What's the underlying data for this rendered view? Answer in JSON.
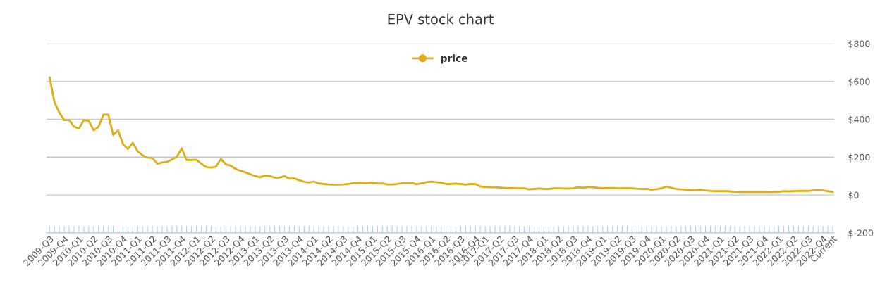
{
  "chart_data": {
    "type": "line",
    "title": "EPV stock chart",
    "categories": [
      "2009-Q3",
      null,
      null,
      "2009-Q4",
      null,
      null,
      "2010-Q1",
      null,
      null,
      "2010-Q2",
      null,
      null,
      "2010-Q3",
      null,
      null,
      "2010-Q4",
      null,
      null,
      "2011-Q1",
      null,
      null,
      "2011-Q2",
      null,
      null,
      "2011-Q3",
      null,
      null,
      "2011-Q4",
      null,
      null,
      "2012-Q1",
      null,
      null,
      "2012-Q2",
      null,
      null,
      "2012-Q3",
      null,
      null,
      "2012-Q4",
      null,
      null,
      "2013-Q1",
      null,
      null,
      "2013-Q2",
      null,
      null,
      "2013-Q3",
      null,
      null,
      "2013-Q4",
      null,
      null,
      "2014-Q1",
      null,
      null,
      "2014-Q2",
      null,
      null,
      "2014-Q3",
      null,
      null,
      "2014-Q4",
      null,
      null,
      "2015-Q1",
      null,
      null,
      "2015-Q2",
      null,
      null,
      "2015-Q3",
      null,
      null,
      "2015-Q4",
      null,
      null,
      "2016-Q1",
      null,
      null,
      "2016-Q2",
      null,
      null,
      "2016-Q3",
      null,
      null,
      "2016-Q4",
      null,
      "2017-Q1",
      null,
      null,
      "2017-Q2",
      null,
      null,
      "2017-Q3",
      null,
      null,
      "2017-Q4",
      null,
      null,
      "2018-Q1",
      null,
      null,
      "2018-Q2",
      null,
      null,
      "2018-Q3",
      null,
      null,
      "2018-Q4",
      null,
      null,
      "2019-Q1",
      null,
      null,
      "2019-Q2",
      null,
      null,
      "2019-Q3",
      null,
      null,
      "2019-Q4",
      null,
      null,
      "2020-Q1",
      null,
      null,
      "2020-Q2",
      null,
      null,
      "2020-Q3",
      null,
      null,
      "2020-Q4",
      null,
      null,
      "2021-Q1",
      null,
      null,
      "2021-Q2",
      null,
      null,
      "2021-Q3",
      null,
      null,
      "2021-Q4",
      null,
      null,
      "2022-Q1",
      null,
      null,
      "2022-Q2",
      null,
      null,
      "2022-Q3",
      null,
      null,
      "2022-Q4",
      null,
      "Current"
    ],
    "series": [
      {
        "name": "price",
        "color": "#e2ac17",
        "values": [
          621,
          491,
          435,
          396,
          396,
          361,
          351,
          396,
          392,
          342,
          361,
          425,
          425,
          317,
          342,
          268,
          243,
          276,
          231,
          210,
          197,
          196,
          165,
          172,
          175,
          187,
          202,
          247,
          185,
          185,
          187,
          165,
          148,
          145,
          150,
          190,
          162,
          155,
          138,
          128,
          120,
          110,
          100,
          94,
          103,
          100,
          92,
          92,
          100,
          86,
          88,
          78,
          70,
          66,
          71,
          61,
          58,
          56,
          55,
          55,
          56,
          58,
          63,
          65,
          65,
          63,
          66,
          60,
          61,
          56,
          56,
          58,
          63,
          63,
          63,
          57,
          62,
          68,
          71,
          68,
          65,
          58,
          58,
          60,
          58,
          55,
          58,
          58,
          45,
          43,
          41,
          41,
          39,
          37,
          36,
          36,
          35,
          35,
          30,
          32,
          34,
          32,
          32,
          35,
          35,
          34,
          34,
          35,
          41,
          38,
          43,
          41,
          38,
          36,
          36,
          37,
          35,
          35,
          36,
          35,
          33,
          32,
          32,
          28,
          31,
          35,
          45,
          38,
          32,
          30,
          28,
          26,
          26,
          28,
          24,
          21,
          20,
          20,
          20,
          19,
          17,
          16,
          16,
          16,
          16,
          16,
          16,
          17,
          16,
          17,
          20,
          19,
          20,
          21,
          22,
          21,
          24,
          25,
          24,
          20,
          16
        ]
      }
    ],
    "ylim": [
      -200,
      800
    ],
    "yticks": [
      {
        "value": -200,
        "label": "$-200"
      },
      {
        "value": 0,
        "label": "$0"
      },
      {
        "value": 200,
        "label": "$200"
      },
      {
        "value": 400,
        "label": "$400"
      },
      {
        "value": 600,
        "label": "$600"
      },
      {
        "value": 800,
        "label": "$800"
      }
    ],
    "grid": "y",
    "legend": "top",
    "marker": "none",
    "line_style": "solid"
  }
}
